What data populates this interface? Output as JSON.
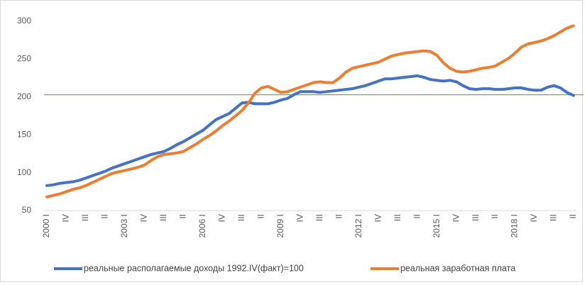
{
  "chart_data": {
    "type": "line",
    "categories": [
      "2000 I",
      null,
      null,
      "IV",
      null,
      null,
      "III",
      null,
      null,
      "II",
      null,
      null,
      "2003 I",
      null,
      null,
      "IV",
      null,
      null,
      "III",
      null,
      null,
      "II",
      null,
      null,
      "2006 I",
      null,
      null,
      "IV",
      null,
      null,
      "III",
      null,
      null,
      "II",
      null,
      null,
      "2009 I",
      null,
      null,
      "IV",
      null,
      null,
      "III",
      null,
      null,
      "II",
      null,
      null,
      "2012 I",
      null,
      null,
      "IV",
      null,
      null,
      "III",
      null,
      null,
      "II",
      null,
      null,
      "2015 I",
      null,
      null,
      "IV",
      null,
      null,
      "III",
      null,
      null,
      "II",
      null,
      null,
      "2018 I",
      null,
      null,
      "IV",
      null,
      null,
      "III",
      null,
      null,
      "II"
    ],
    "series": [
      {
        "name": "реальные располагаемые доходы 1992.IV(факт)=100",
        "color": "#4472c4",
        "values": [
          83,
          84,
          86,
          87,
          88,
          90,
          93,
          96,
          99,
          102,
          106,
          109,
          112,
          115,
          118,
          121,
          124,
          126,
          128,
          132,
          137,
          141,
          146,
          151,
          156,
          163,
          170,
          174,
          178,
          185,
          192,
          193,
          191,
          191,
          191,
          193,
          196,
          198,
          203,
          207,
          207,
          207,
          206,
          207,
          208,
          209,
          210,
          211,
          213,
          215,
          218,
          221,
          224,
          224,
          225,
          226,
          227,
          228,
          226,
          223,
          222,
          221,
          222,
          220,
          215,
          211,
          210,
          211,
          211,
          210,
          210,
          211,
          212,
          212,
          210,
          209,
          209,
          213,
          215,
          212,
          206,
          202
        ]
      },
      {
        "name": "реальная заработная плата",
        "color": "#ed7d31",
        "values": [
          68,
          70,
          72,
          75,
          78,
          80,
          83,
          87,
          91,
          95,
          99,
          101,
          103,
          105,
          107,
          110,
          116,
          121,
          124,
          125,
          126,
          128,
          133,
          138,
          144,
          149,
          155,
          162,
          168,
          175,
          182,
          192,
          205,
          212,
          214,
          210,
          206,
          207,
          210,
          213,
          216,
          219,
          220,
          219,
          219,
          225,
          233,
          238,
          240,
          242,
          244,
          246,
          250,
          254,
          256,
          258,
          259,
          260,
          261,
          260,
          255,
          245,
          238,
          234,
          233,
          234,
          236,
          238,
          239,
          241,
          246,
          251,
          258,
          266,
          270,
          272,
          274,
          277,
          281,
          286,
          291,
          294
        ]
      }
    ],
    "ylim": [
      50,
      300
    ],
    "yticks": [
      50,
      100,
      150,
      200,
      250,
      300
    ],
    "grid": false,
    "reference_line": {
      "value": 203,
      "color": "#70ad47"
    },
    "legend": "bottom"
  }
}
